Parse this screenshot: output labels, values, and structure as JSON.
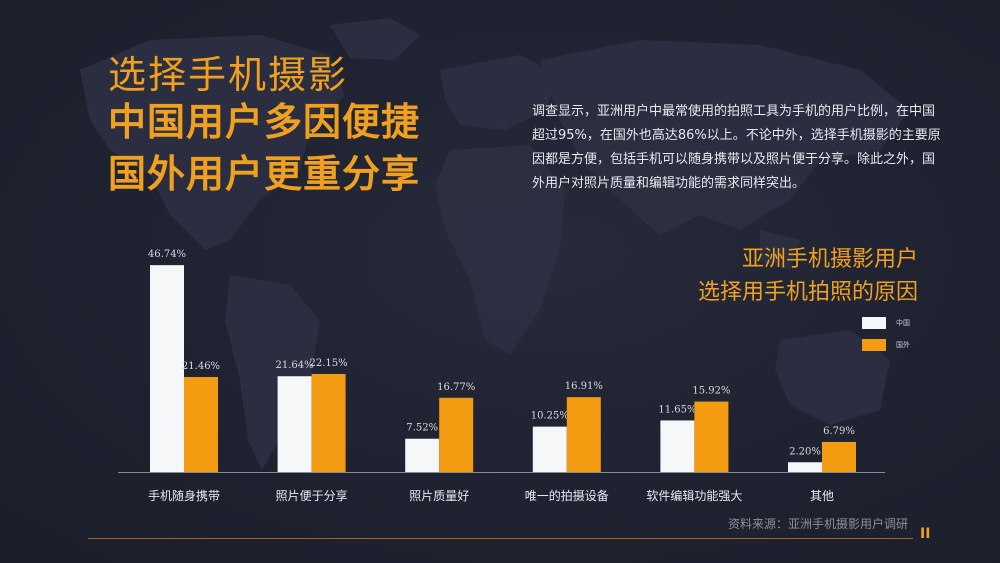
{
  "header": {
    "subtitle": "选择手机摄影",
    "title_line1": "中国用户多因便捷",
    "title_line2": "国外用户更重分享"
  },
  "description": "调查显示，亚洲用户中最常使用的拍照工具为手机的用户比例，在中国超过95%，在国外也高达86%以上。不论中外，选择手机摄影的主要原因都是方便，包括手机可以随身携带以及照片便于分享。除此之外，国外用户对照片质量和编辑功能的需求同样突出。",
  "chart_title_line1": "亚洲手机摄影用户",
  "chart_title_line2": "选择用手机拍照的原因",
  "source": "资料来源：亚洲手机摄影用户调研",
  "pause_glyph": "II",
  "colors": {
    "china": "#f6f7f9",
    "foreign": "#f39c12",
    "accent": "#f0a020"
  },
  "chart_data": {
    "type": "bar",
    "title": "",
    "categories": [
      "手机随身携带",
      "照片便于分享",
      "照片质量好",
      "唯一的拍摄设备",
      "软件编辑功能强大",
      "其他"
    ],
    "series": [
      {
        "name": "中国",
        "values": [
          46.74,
          21.64,
          7.52,
          10.25,
          11.65,
          2.2
        ],
        "labels": [
          "46.74%",
          "21.64%",
          "7.52%",
          "10.25%",
          "11.65%",
          "2.20%"
        ]
      },
      {
        "name": "国外",
        "values": [
          21.46,
          22.15,
          16.77,
          16.91,
          15.92,
          6.79
        ],
        "labels": [
          "21.46%",
          "22.15%",
          "16.77%",
          "16.91%",
          "15.92%",
          "6.79%"
        ]
      }
    ],
    "ylim": [
      0,
      47
    ],
    "grid": false,
    "legend": "right"
  }
}
